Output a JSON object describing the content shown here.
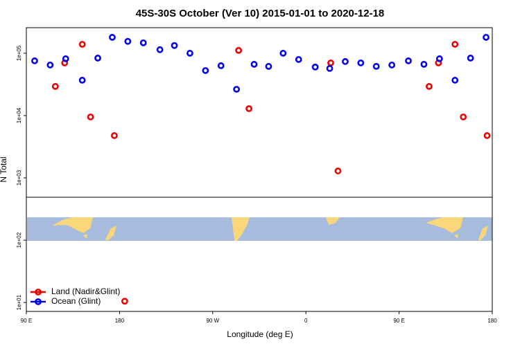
{
  "chart_data": {
    "type": "scatter",
    "title": "45S-30S October (Ver 10)   2015-01-01 to 2020-12-18",
    "x_label": "Longitude (deg E)",
    "y_label": "N Total",
    "log_y": true,
    "legend": "bottom-left",
    "xlim": [
      90,
      540
    ],
    "xticks": [
      {
        "value": 90,
        "label": "90 E"
      },
      {
        "value": 180,
        "label": "180"
      },
      {
        "value": 270,
        "label": "90 W"
      },
      {
        "value": 360,
        "label": "0"
      },
      {
        "value": 450,
        "label": "90 E"
      },
      {
        "value": 540,
        "label": "180"
      }
    ],
    "ylim": [
      7.2,
      257000
    ],
    "yticks": [
      {
        "value": 10,
        "label": "1e+01"
      },
      {
        "value": 100,
        "label": "1e+02"
      },
      {
        "value": 1000,
        "label": "1e+03"
      },
      {
        "value": 10000,
        "label": "1e+04"
      },
      {
        "value": 100000,
        "label": "1e+05"
      }
    ],
    "series": [
      {
        "name": "Land (Nadir&Glint)",
        "color": "#ee0000",
        "x": [
          118,
          127,
          144,
          152,
          175,
          295,
          305,
          384,
          391,
          185,
          479,
          488,
          504,
          512,
          535
        ],
        "values": [
          29300,
          69900,
          139000,
          9500,
          4770,
          111000,
          12900,
          69900,
          1290,
          10.5,
          29300,
          69900,
          139000,
          9500,
          4770
        ]
      },
      {
        "name": "Ocean (Glint)",
        "color": "#0000ee",
        "x": [
          98,
          113,
          128,
          144,
          159,
          173,
          188,
          203,
          219,
          233,
          248,
          263,
          278,
          293,
          310,
          324,
          338,
          353,
          369,
          383,
          398,
          413,
          428,
          443,
          459,
          474,
          489,
          504,
          519,
          534
        ],
        "values": [
          75500,
          64700,
          81500,
          36900,
          83600,
          180000,
          155000,
          147000,
          114000,
          133000,
          100000,
          52700,
          63100,
          26400,
          66400,
          61500,
          100000,
          79400,
          60000,
          57000,
          73600,
          69900,
          61500,
          64700,
          75500,
          66400,
          81500,
          36900,
          83600,
          180000
        ]
      }
    ]
  }
}
